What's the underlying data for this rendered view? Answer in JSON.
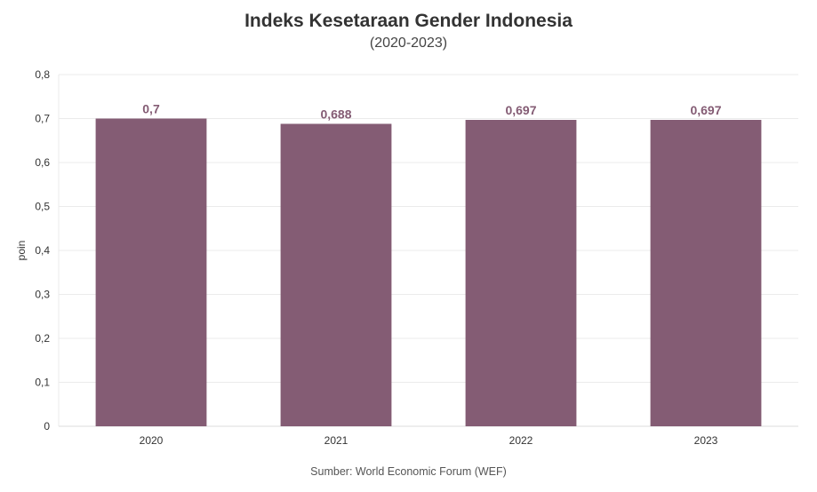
{
  "chart_data": {
    "type": "bar",
    "title": "Indeks Kesetaraan Gender Indonesia",
    "subtitle": "(2020-2023)",
    "source": "Sumber: World Economic Forum (WEF)",
    "xlabel": "",
    "ylabel": "poin",
    "categories": [
      "2020",
      "2021",
      "2022",
      "2023"
    ],
    "values": [
      0.7,
      0.688,
      0.697,
      0.697
    ],
    "value_labels": [
      "0,7",
      "0,688",
      "0,697",
      "0,697"
    ],
    "ylim": [
      0,
      0.8
    ],
    "yticks": [
      0,
      0.1,
      0.2,
      0.3,
      0.4,
      0.5,
      0.6,
      0.7,
      0.8
    ],
    "ytick_labels": [
      "0",
      "0,1",
      "0,2",
      "0,3",
      "0,4",
      "0,5",
      "0,6",
      "0,7",
      "0,8"
    ],
    "grid": true,
    "legend": "none",
    "colors": {
      "bar": "#845c74",
      "label": "#845c74",
      "grid": "#ebebeb"
    }
  }
}
